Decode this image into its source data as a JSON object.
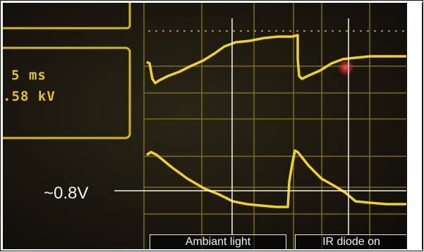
{
  "scope_readout": {
    "time_per_div": "5 ms",
    "voltage": ".58 kV"
  },
  "annotations": {
    "voltage_level": "~0.8V",
    "ambient_label": "Ambiant light",
    "ir_label": "IR diode on"
  },
  "colors": {
    "screen_bg": "#15130c",
    "trace": "#f2d21c",
    "grid": "#8f7a14",
    "marker": "#f4f4f4",
    "red_dot": "#ff3030"
  }
}
